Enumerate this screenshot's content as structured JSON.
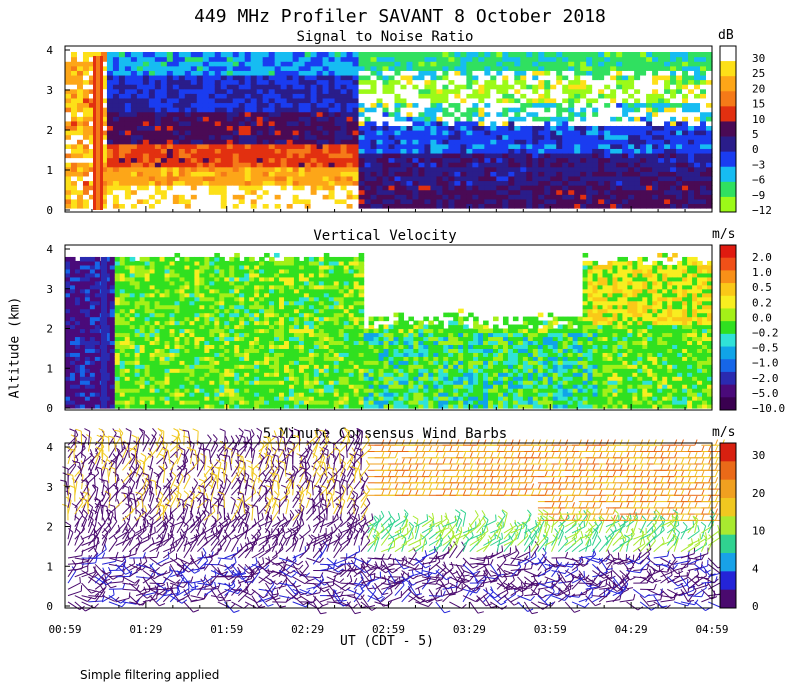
{
  "title": "449 MHz Profiler SAVANT  8 October 2018",
  "y_axis_label": "Altitude (km)",
  "x_axis_label": "UT (CDT - 5)",
  "footnote": "Simple filtering applied",
  "colors": {
    "snr": [
      "#9cfa18",
      "#30e060",
      "#16bcf2",
      "#1a3cf0",
      "#2a1d8a",
      "#4a0a55",
      "#e23010",
      "#f57a18",
      "#fda618",
      "#fde018",
      "#ffffff"
    ],
    "vel": [
      "#3a0050",
      "#4a0a7a",
      "#2a2ab0",
      "#1666e8",
      "#10a4e8",
      "#30e2d8",
      "#30e020",
      "#a4f018",
      "#f8ee20",
      "#fac818",
      "#f89018",
      "#f05018",
      "#e01a10"
    ],
    "wind": [
      "#4a0a6e",
      "#2424d8",
      "#18a2e8",
      "#30d290",
      "#a8ea30",
      "#f0c820",
      "#f0a020",
      "#ea6a18",
      "#d82010"
    ]
  },
  "chart_data": [
    {
      "type": "heatmap",
      "title": "Signal to Noise Ratio",
      "units": "dB",
      "y_ticks": [
        "0",
        "1",
        "2",
        "3",
        "4"
      ],
      "ylim": [
        0,
        4
      ],
      "x_tick_labels": [
        "00:59",
        "01:29",
        "01:59",
        "02:29",
        "02:59",
        "03:29",
        "03:59",
        "04:29",
        "04:59"
      ],
      "colorbar_labels": [
        "30",
        "25",
        "20",
        "15",
        "10",
        "5",
        "0",
        "−3",
        "−6",
        "−9",
        "−12"
      ],
      "colorbar_values": [
        30,
        25,
        20,
        15,
        10,
        5,
        0,
        -3,
        -6,
        -9,
        -12
      ]
    },
    {
      "type": "heatmap",
      "title": "Vertical Velocity",
      "units": "m/s",
      "y_ticks": [
        "0",
        "1",
        "2",
        "3",
        "4"
      ],
      "ylim": [
        0,
        4
      ],
      "x_tick_labels": [
        "00:59",
        "01:29",
        "01:59",
        "02:29",
        "02:59",
        "03:29",
        "03:59",
        "04:29",
        "04:59"
      ],
      "colorbar_labels": [
        "2.0",
        "1.0",
        "0.5",
        "0.2",
        "0.0",
        "−0.2",
        "−0.5",
        "−1.0",
        "−2.0",
        "−5.0",
        "−10.0"
      ],
      "colorbar_values": [
        2.0,
        1.0,
        0.5,
        0.2,
        0.0,
        -0.2,
        -0.5,
        -1.0,
        -2.0,
        -5.0,
        -10.0
      ]
    },
    {
      "type": "wind_barbs",
      "title": "5 Minute Consensus Wind Barbs",
      "units": "m/s",
      "y_ticks": [
        "0",
        "1",
        "2",
        "3",
        "4"
      ],
      "ylim": [
        0,
        4
      ],
      "x_tick_labels": [
        "00:59",
        "01:29",
        "01:59",
        "02:29",
        "02:59",
        "03:29",
        "03:59",
        "04:29",
        "04:59"
      ],
      "colorbar_labels": [
        "30",
        "20",
        "10",
        "4",
        "0"
      ],
      "colorbar_values": [
        30,
        20,
        10,
        4,
        0
      ]
    }
  ]
}
